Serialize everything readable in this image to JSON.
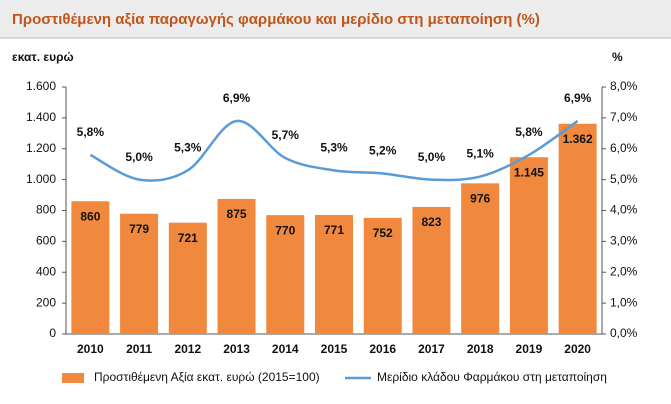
{
  "chart_data": {
    "type": "bar-line",
    "title": "Προστιθέμενη αξία παραγωγής φαρμάκου και μερίδιο στη μεταποίηση (%)",
    "y_label": "εκατ. ευρώ",
    "y2_label": "%",
    "categories": [
      "2010",
      "2011",
      "2012",
      "2013",
      "2014",
      "2015",
      "2016",
      "2017",
      "2018",
      "2019",
      "2020"
    ],
    "series": [
      {
        "name": "Προστιθέμενη Αξία εκατ. ευρώ (2015=100)",
        "color": "#f0883e",
        "kind": "bar",
        "values": [
          860,
          779,
          721,
          875,
          770,
          771,
          752,
          823,
          976,
          1145,
          1362
        ],
        "value_labels": [
          "860",
          "779",
          "721",
          "875",
          "770",
          "771",
          "752",
          "823",
          "976",
          "1.145",
          "1.362"
        ]
      },
      {
        "name": "Μερίδιο κλάδου Φαρμάκου στη μεταποίηση",
        "color": "#5b9bd5",
        "kind": "line",
        "axis": "y2",
        "values": [
          5.8,
          5.0,
          5.3,
          6.9,
          5.7,
          5.3,
          5.2,
          5.0,
          5.1,
          5.8,
          6.9
        ],
        "value_labels": [
          "5,8%",
          "5,0%",
          "5,3%",
          "6,9%",
          "5,7%",
          "5,3%",
          "5,2%",
          "5,0%",
          "5,1%",
          "5,8%",
          "6,9%"
        ]
      }
    ],
    "ylim": [
      0,
      1600
    ],
    "yticks": [
      0,
      200,
      400,
      600,
      800,
      {
        "value": 1000,
        "label": "1.000"
      },
      {
        "value": 1200,
        "label": "1.200"
      },
      {
        "value": 1400,
        "label": "1.400"
      },
      {
        "value": 1600,
        "label": "1.600"
      }
    ],
    "y2lim": [
      0,
      8
    ],
    "y2ticks": [
      {
        "value": 0,
        "label": "0,0%"
      },
      {
        "value": 1,
        "label": "1,0%"
      },
      {
        "value": 2,
        "label": "2,0%"
      },
      {
        "value": 3,
        "label": "3,0%"
      },
      {
        "value": 4,
        "label": "4,0%"
      },
      {
        "value": 5,
        "label": "5,0%"
      },
      {
        "value": 6,
        "label": "6,0%"
      },
      {
        "value": 7,
        "label": "7,0%"
      },
      {
        "value": 8,
        "label": "8,0%"
      }
    ],
    "legend": "bottom"
  }
}
